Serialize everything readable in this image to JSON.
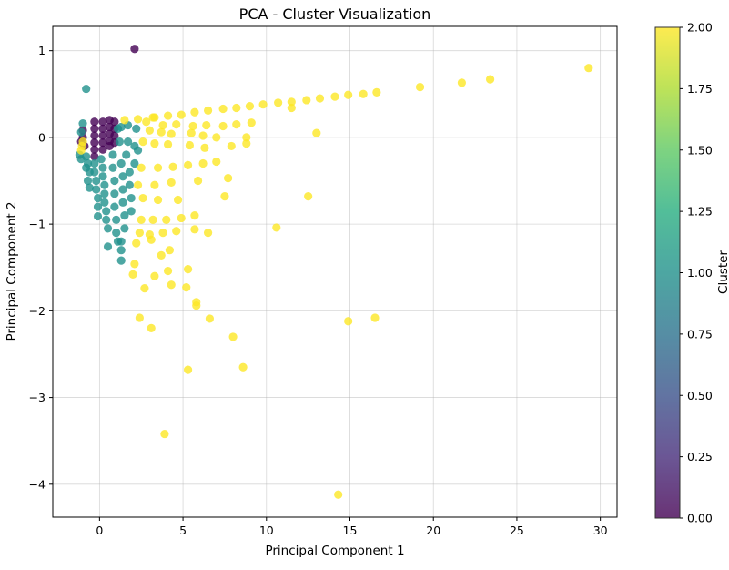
{
  "chart_data": {
    "type": "scatter",
    "title": "PCA - Cluster Visualization",
    "xlabel": "Principal Component 1",
    "ylabel": "Principal Component 2",
    "xlim": [
      -2.8,
      31.0
    ],
    "ylim": [
      -4.38,
      1.28
    ],
    "xticks": [
      0,
      5,
      10,
      15,
      20,
      25,
      30
    ],
    "yticks": [
      1,
      0,
      -1,
      -2,
      -3,
      -4
    ],
    "tick_labels": {
      "x": [
        "0",
        "5",
        "10",
        "15",
        "20",
        "25",
        "30"
      ],
      "y": [
        "1",
        "0",
        "−1",
        "−2",
        "−3",
        "−4"
      ]
    },
    "grid": true,
    "colorbar": {
      "label": "Cluster",
      "min": 0.0,
      "max": 2.0,
      "ticks": [
        2.0,
        1.75,
        1.5,
        1.25,
        1.0,
        0.75,
        0.5,
        0.25,
        0.0
      ],
      "tick_labels": [
        "2.00",
        "1.75",
        "1.50",
        "1.25",
        "1.00",
        "0.75",
        "0.50",
        "0.25",
        "0.00"
      ],
      "colormap": "viridis"
    },
    "colors": {
      "cluster_0": "#440154",
      "cluster_1": "#21918c",
      "cluster_2": "#fde725"
    },
    "series": [
      {
        "cluster": 0,
        "points": [
          [
            2.1,
            1.02
          ],
          [
            -1.0,
            0.08
          ],
          [
            -1.0,
            0.0
          ],
          [
            -1.1,
            -0.05
          ],
          [
            -0.9,
            -0.1
          ],
          [
            -0.3,
            0.18
          ],
          [
            -0.3,
            0.1
          ],
          [
            -0.3,
            0.02
          ],
          [
            -0.3,
            -0.06
          ],
          [
            -0.3,
            -0.14
          ],
          [
            -0.3,
            -0.22
          ],
          [
            0.2,
            0.18
          ],
          [
            0.2,
            0.1
          ],
          [
            0.2,
            0.02
          ],
          [
            0.2,
            -0.06
          ],
          [
            0.2,
            -0.14
          ],
          [
            0.6,
            0.2
          ],
          [
            0.6,
            0.12
          ],
          [
            0.6,
            0.04
          ],
          [
            0.6,
            -0.04
          ],
          [
            0.6,
            -0.1
          ],
          [
            0.9,
            0.18
          ],
          [
            0.9,
            0.1
          ],
          [
            0.9,
            0.02
          ],
          [
            0.9,
            -0.06
          ]
        ]
      },
      {
        "cluster": 1,
        "points": [
          [
            -0.8,
            0.56
          ],
          [
            -1.0,
            0.16
          ],
          [
            -1.1,
            0.06
          ],
          [
            -1.2,
            -0.2
          ],
          [
            -1.1,
            -0.25
          ],
          [
            -0.8,
            -0.22
          ],
          [
            -0.7,
            -0.3
          ],
          [
            -0.8,
            -0.35
          ],
          [
            -0.6,
            -0.4
          ],
          [
            -0.7,
            -0.5
          ],
          [
            -0.6,
            -0.58
          ],
          [
            -0.3,
            -0.3
          ],
          [
            -0.3,
            -0.4
          ],
          [
            -0.2,
            -0.5
          ],
          [
            -0.2,
            -0.6
          ],
          [
            -0.1,
            -0.7
          ],
          [
            -0.1,
            -0.8
          ],
          [
            -0.1,
            -0.91
          ],
          [
            0.1,
            -0.25
          ],
          [
            0.2,
            -0.35
          ],
          [
            0.2,
            -0.45
          ],
          [
            0.3,
            -0.55
          ],
          [
            0.3,
            -0.65
          ],
          [
            0.3,
            -0.75
          ],
          [
            0.4,
            -0.85
          ],
          [
            0.4,
            -0.95
          ],
          [
            0.5,
            -1.05
          ],
          [
            0.5,
            -1.26
          ],
          [
            0.8,
            -0.2
          ],
          [
            0.8,
            -0.35
          ],
          [
            0.9,
            -0.5
          ],
          [
            0.9,
            -0.65
          ],
          [
            0.9,
            -0.8
          ],
          [
            1.0,
            -0.95
          ],
          [
            1.0,
            -1.1
          ],
          [
            1.1,
            -1.2
          ],
          [
            1.1,
            0.1
          ],
          [
            1.2,
            -0.05
          ],
          [
            1.3,
            0.12
          ],
          [
            1.3,
            -0.3
          ],
          [
            1.3,
            -1.2
          ],
          [
            1.3,
            -1.3
          ],
          [
            1.3,
            -1.42
          ],
          [
            1.4,
            -0.45
          ],
          [
            1.4,
            -0.6
          ],
          [
            1.4,
            -0.75
          ],
          [
            1.5,
            -0.9
          ],
          [
            1.5,
            -1.05
          ],
          [
            1.6,
            -0.2
          ],
          [
            1.7,
            0.14
          ],
          [
            1.7,
            -0.05
          ],
          [
            1.8,
            -0.4
          ],
          [
            1.8,
            -0.55
          ],
          [
            1.9,
            -0.7
          ],
          [
            1.9,
            -0.85
          ],
          [
            2.1,
            -0.1
          ],
          [
            2.1,
            -0.3
          ],
          [
            2.2,
            0.1
          ],
          [
            2.3,
            -0.15
          ]
        ]
      },
      {
        "cluster": 2,
        "points": [
          [
            -1.1,
            -0.15
          ],
          [
            -1.0,
            -0.05
          ],
          [
            -1.05,
            -0.1
          ],
          [
            1.5,
            0.2
          ],
          [
            2.3,
            0.21
          ],
          [
            3.2,
            0.23
          ],
          [
            4.1,
            0.25
          ],
          [
            4.9,
            0.26
          ],
          [
            5.7,
            0.29
          ],
          [
            6.5,
            0.31
          ],
          [
            7.4,
            0.33
          ],
          [
            8.2,
            0.34
          ],
          [
            9.0,
            0.36
          ],
          [
            9.8,
            0.38
          ],
          [
            10.7,
            0.4
          ],
          [
            11.5,
            0.41
          ],
          [
            12.4,
            0.43
          ],
          [
            13.2,
            0.45
          ],
          [
            14.1,
            0.47
          ],
          [
            14.9,
            0.49
          ],
          [
            15.8,
            0.5
          ],
          [
            16.6,
            0.52
          ],
          [
            19.2,
            0.58
          ],
          [
            21.7,
            0.63
          ],
          [
            23.4,
            0.67
          ],
          [
            29.3,
            0.8
          ],
          [
            11.5,
            0.34
          ],
          [
            3.3,
            0.23
          ],
          [
            2.8,
            0.18
          ],
          [
            3.8,
            0.14
          ],
          [
            4.6,
            0.15
          ],
          [
            5.6,
            0.13
          ],
          [
            6.4,
            0.14
          ],
          [
            7.4,
            0.13
          ],
          [
            8.2,
            0.15
          ],
          [
            9.1,
            0.17
          ],
          [
            3.0,
            0.08
          ],
          [
            3.7,
            0.06
          ],
          [
            4.3,
            0.04
          ],
          [
            5.5,
            0.05
          ],
          [
            6.2,
            0.02
          ],
          [
            7.0,
            0.0
          ],
          [
            8.8,
            0.0
          ],
          [
            13.0,
            0.05
          ],
          [
            2.6,
            -0.05
          ],
          [
            3.3,
            -0.07
          ],
          [
            4.1,
            -0.08
          ],
          [
            5.4,
            -0.09
          ],
          [
            6.3,
            -0.12
          ],
          [
            7.9,
            -0.1
          ],
          [
            8.8,
            -0.07
          ],
          [
            2.5,
            -0.35
          ],
          [
            3.5,
            -0.35
          ],
          [
            4.4,
            -0.34
          ],
          [
            5.3,
            -0.32
          ],
          [
            6.2,
            -0.3
          ],
          [
            7.0,
            -0.28
          ],
          [
            2.3,
            -0.55
          ],
          [
            3.3,
            -0.55
          ],
          [
            4.3,
            -0.52
          ],
          [
            5.9,
            -0.5
          ],
          [
            7.7,
            -0.47
          ],
          [
            2.6,
            -0.7
          ],
          [
            3.5,
            -0.72
          ],
          [
            4.7,
            -0.72
          ],
          [
            7.5,
            -0.68
          ],
          [
            12.5,
            -0.68
          ],
          [
            2.5,
            -0.95
          ],
          [
            3.2,
            -0.95
          ],
          [
            4.0,
            -0.95
          ],
          [
            4.9,
            -0.93
          ],
          [
            5.7,
            -0.9
          ],
          [
            2.4,
            -1.1
          ],
          [
            3.0,
            -1.12
          ],
          [
            3.8,
            -1.1
          ],
          [
            4.6,
            -1.08
          ],
          [
            5.7,
            -1.06
          ],
          [
            6.5,
            -1.1
          ],
          [
            10.6,
            -1.04
          ],
          [
            2.2,
            -1.22
          ],
          [
            3.1,
            -1.18
          ],
          [
            4.2,
            -1.3
          ],
          [
            3.7,
            -1.36
          ],
          [
            2.1,
            -1.46
          ],
          [
            3.3,
            -1.6
          ],
          [
            4.1,
            -1.54
          ],
          [
            5.3,
            -1.52
          ],
          [
            2.0,
            -1.58
          ],
          [
            2.7,
            -1.74
          ],
          [
            4.3,
            -1.7
          ],
          [
            5.2,
            -1.73
          ],
          [
            5.8,
            -1.9
          ],
          [
            5.8,
            -1.94
          ],
          [
            2.4,
            -2.08
          ],
          [
            3.1,
            -2.2
          ],
          [
            6.6,
            -2.09
          ],
          [
            14.9,
            -2.12
          ],
          [
            16.5,
            -2.08
          ],
          [
            8.0,
            -2.3
          ],
          [
            8.6,
            -2.65
          ],
          [
            5.3,
            -2.68
          ],
          [
            3.9,
            -3.42
          ],
          [
            14.3,
            -4.12
          ]
        ]
      }
    ]
  }
}
